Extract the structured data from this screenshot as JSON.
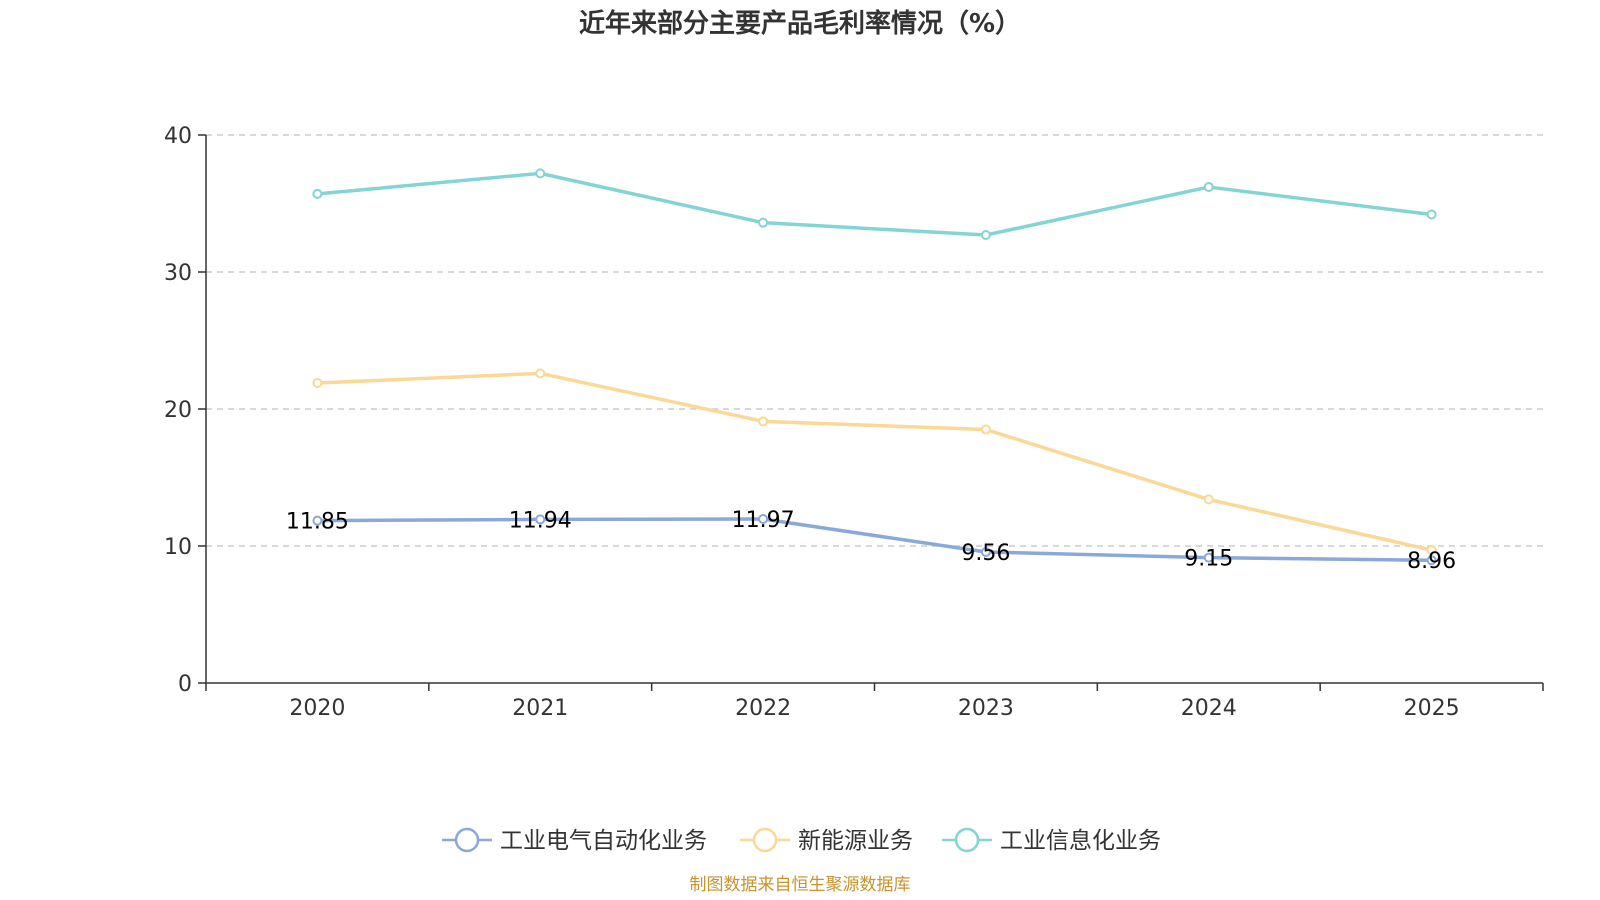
{
  "chart_data": {
    "type": "line",
    "title": "近年来部分主要产品毛利率情况（%）",
    "categories": [
      "2020",
      "2021",
      "2022",
      "2023",
      "2024",
      "2025"
    ],
    "ylim": [
      0,
      40
    ],
    "yticks": [
      "0",
      "10",
      "20",
      "30",
      "40"
    ],
    "grid": true,
    "legend_position": "bottom-center",
    "series": [
      {
        "name": "工业电气自动化业务",
        "color": "#8aa8d8",
        "values": [
          11.85,
          11.94,
          11.97,
          9.56,
          9.15,
          8.96
        ],
        "labels": [
          "11.85",
          "11.94",
          "11.97",
          "9.56",
          "9.15",
          "8.96"
        ]
      },
      {
        "name": "新能源业务",
        "color": "#fad896",
        "values": [
          21.9,
          22.6,
          19.1,
          18.5,
          13.4,
          9.7
        ]
      },
      {
        "name": "工业信息化业务",
        "color": "#84d4d6",
        "values": [
          35.7,
          37.2,
          33.6,
          32.7,
          36.2,
          34.2
        ]
      }
    ]
  },
  "source": "制图数据来自恒生聚源数据库"
}
